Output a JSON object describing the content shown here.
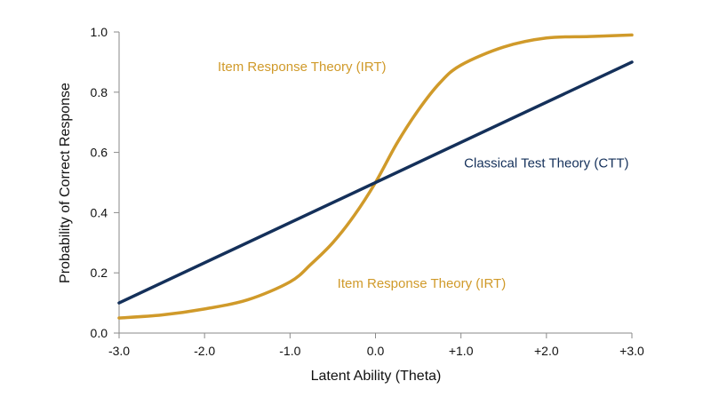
{
  "chart_data": {
    "type": "line",
    "title": "",
    "xlabel": "Latent Ability (Theta)",
    "ylabel": "Probability of Correct Response",
    "xlim": [
      -3.0,
      3.0
    ],
    "ylim": [
      0.0,
      1.0
    ],
    "x_ticks": [
      -3.0,
      -2.0,
      -1.0,
      0.0,
      1.0,
      2.0,
      3.0
    ],
    "x_tick_labels": [
      "-3.0",
      "-2.0",
      "-1.0",
      "0.0",
      "+1.0",
      "+2.0",
      "+3.0"
    ],
    "y_ticks": [
      0.0,
      0.2,
      0.4,
      0.6,
      0.8,
      1.0
    ],
    "y_tick_labels": [
      "0.0",
      "0.2",
      "0.4",
      "0.6",
      "0.8",
      "1.0"
    ],
    "grid": false,
    "legend": "none",
    "series": [
      {
        "name": "Item Response Theory (IRT)",
        "color": "#d09a2a",
        "x": [
          -3.0,
          -2.5,
          -2.0,
          -1.5,
          -1.0,
          -0.75,
          -0.5,
          -0.25,
          0.0,
          0.25,
          0.5,
          0.75,
          1.0,
          1.5,
          2.0,
          2.5,
          3.0
        ],
        "y": [
          0.05,
          0.06,
          0.08,
          0.11,
          0.17,
          0.23,
          0.3,
          0.39,
          0.5,
          0.63,
          0.74,
          0.83,
          0.89,
          0.95,
          0.98,
          0.985,
          0.99
        ]
      },
      {
        "name": "Classical Test Theory (CTT)",
        "color": "#14305a",
        "x": [
          -3.0,
          3.0
        ],
        "y": [
          0.1,
          0.9
        ]
      }
    ],
    "annotations": [
      {
        "text": "Item Response Theory (IRT)",
        "series": 0,
        "x": -0.86,
        "y": 0.87
      },
      {
        "text": "Item Response Theory (IRT)",
        "series": 0,
        "x": 0.54,
        "y": 0.15
      },
      {
        "text": "Classical Test Theory (CTT)",
        "series": 1,
        "x": 2.0,
        "y": 0.55
      }
    ]
  }
}
